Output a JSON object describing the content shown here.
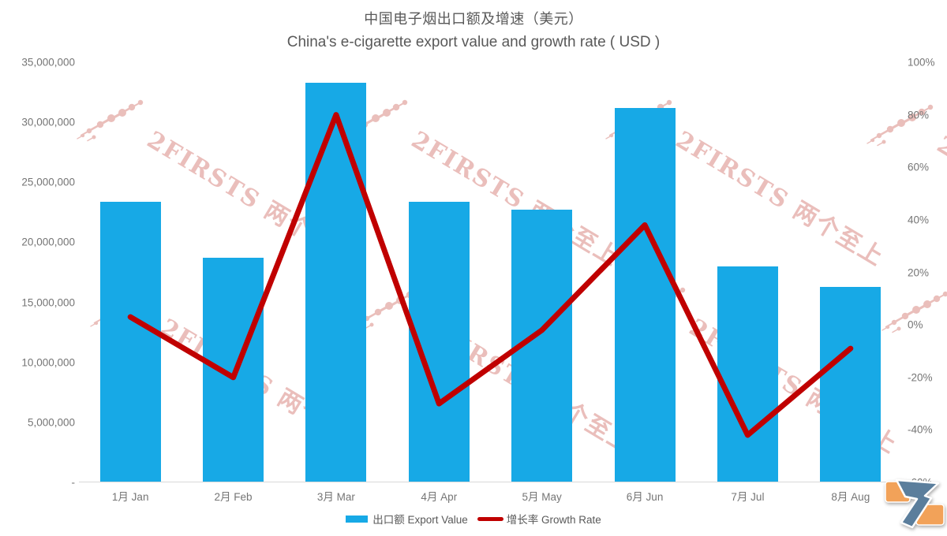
{
  "title": {
    "zh": "中国电子烟出口额及增速（美元）",
    "en": "China's e-cigarette export value and growth rate ( USD )"
  },
  "watermark": {
    "text": "2FIRSTS 两个至上"
  },
  "colors": {
    "bar": "#17a9e6",
    "line": "#c00000",
    "title_text": "#595959",
    "axis_text": "#757575",
    "axis_line": "#d9d9d9",
    "watermark_pink": "#d98b85",
    "logo_orange": "#f2a259",
    "logo_blue": "#5b7e9c"
  },
  "chart_data": {
    "type": "bar+line",
    "categories": [
      "1月 Jan",
      "2月 Feb",
      "3月 Mar",
      "4月 Apr",
      "5月 May",
      "6月 Jun",
      "7月 Jul",
      "8月 Aug"
    ],
    "series": [
      {
        "name": "出口额 Export Value",
        "type": "bar",
        "y_axis": "left",
        "color": "#17a9e6",
        "values": [
          23400000,
          18700000,
          33300000,
          23400000,
          22700000,
          31200000,
          18000000,
          16300000
        ]
      },
      {
        "name": "增长率 Growth Rate",
        "type": "line",
        "y_axis": "right",
        "color": "#c00000",
        "values": [
          3,
          -20,
          80,
          -30,
          -2,
          38,
          -42,
          -9
        ]
      }
    ],
    "left_axis": {
      "min": 0,
      "max": 35000000,
      "step": 5000000,
      "tick_labels": [
        "35,000,000",
        "30,000,000",
        "25,000,000",
        "20,000,000",
        "15,000,000",
        "10,000,000",
        "5,000,000",
        "-"
      ]
    },
    "right_axis": {
      "min": -60,
      "max": 100,
      "step": 20,
      "tick_labels": [
        "100%",
        "80%",
        "60%",
        "40%",
        "20%",
        "0%",
        "-20%",
        "-40%",
        "-60%"
      ]
    },
    "grid": false,
    "legend_position": "bottom"
  },
  "legend": {
    "bar_label": "出口额 Export Value",
    "line_label": "增长率 Growth Rate"
  }
}
